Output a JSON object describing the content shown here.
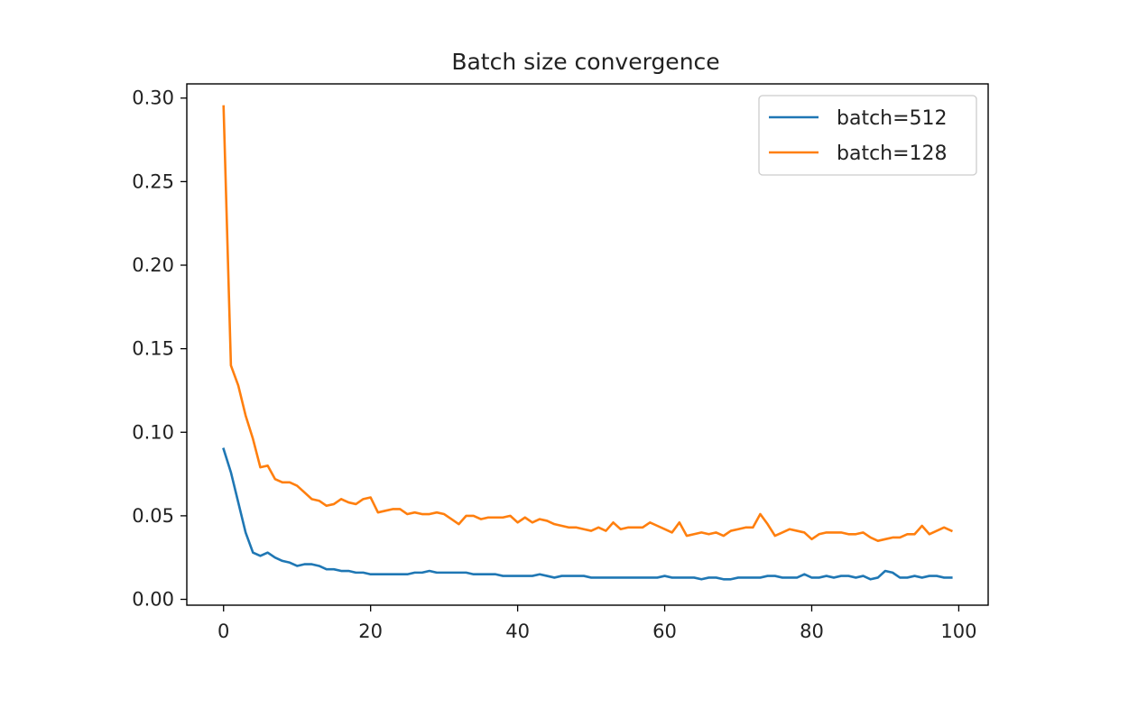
{
  "chart_data": {
    "type": "line",
    "title": "Batch size convergence",
    "xlabel": "",
    "ylabel": "",
    "xlim": [
      -5,
      104
    ],
    "ylim": [
      -0.0035,
      0.3085
    ],
    "xticks": [
      0,
      20,
      40,
      60,
      80,
      100
    ],
    "xtick_labels": [
      "0",
      "20",
      "40",
      "60",
      "80",
      "100"
    ],
    "yticks": [
      0.0,
      0.05,
      0.1,
      0.15,
      0.2,
      0.25,
      0.3
    ],
    "ytick_labels": [
      "0.00",
      "0.05",
      "0.10",
      "0.15",
      "0.20",
      "0.25",
      "0.30"
    ],
    "grid": false,
    "legend_position": "upper right",
    "x": [
      0,
      1,
      2,
      3,
      4,
      5,
      6,
      7,
      8,
      9,
      10,
      11,
      12,
      13,
      14,
      15,
      16,
      17,
      18,
      19,
      20,
      21,
      22,
      23,
      24,
      25,
      26,
      27,
      28,
      29,
      30,
      31,
      32,
      33,
      34,
      35,
      36,
      37,
      38,
      39,
      40,
      41,
      42,
      43,
      44,
      45,
      46,
      47,
      48,
      49,
      50,
      51,
      52,
      53,
      54,
      55,
      56,
      57,
      58,
      59,
      60,
      61,
      62,
      63,
      64,
      65,
      66,
      67,
      68,
      69,
      70,
      71,
      72,
      73,
      74,
      75,
      76,
      77,
      78,
      79,
      80,
      81,
      82,
      83,
      84,
      85,
      86,
      87,
      88,
      89,
      90,
      91,
      92,
      93,
      94,
      95,
      96,
      97,
      98,
      99
    ],
    "series": [
      {
        "name": "batch=512",
        "color": "#1f77b4",
        "values": [
          0.09,
          0.076,
          0.058,
          0.04,
          0.028,
          0.026,
          0.028,
          0.025,
          0.023,
          0.022,
          0.02,
          0.021,
          0.021,
          0.02,
          0.018,
          0.018,
          0.017,
          0.017,
          0.016,
          0.016,
          0.015,
          0.015,
          0.015,
          0.015,
          0.015,
          0.015,
          0.016,
          0.016,
          0.017,
          0.016,
          0.016,
          0.016,
          0.016,
          0.016,
          0.015,
          0.015,
          0.015,
          0.015,
          0.014,
          0.014,
          0.014,
          0.014,
          0.014,
          0.015,
          0.014,
          0.013,
          0.014,
          0.014,
          0.014,
          0.014,
          0.013,
          0.013,
          0.013,
          0.013,
          0.013,
          0.013,
          0.013,
          0.013,
          0.013,
          0.013,
          0.014,
          0.013,
          0.013,
          0.013,
          0.013,
          0.012,
          0.013,
          0.013,
          0.012,
          0.012,
          0.013,
          0.013,
          0.013,
          0.013,
          0.014,
          0.014,
          0.013,
          0.013,
          0.013,
          0.015,
          0.013,
          0.013,
          0.014,
          0.013,
          0.014,
          0.014,
          0.013,
          0.014,
          0.012,
          0.013,
          0.017,
          0.016,
          0.013,
          0.013,
          0.014,
          0.013,
          0.014,
          0.014,
          0.013,
          0.013
        ]
      },
      {
        "name": "batch=128",
        "color": "#ff7f0e",
        "values": [
          0.295,
          0.14,
          0.128,
          0.11,
          0.096,
          0.079,
          0.08,
          0.072,
          0.07,
          0.07,
          0.068,
          0.064,
          0.06,
          0.059,
          0.056,
          0.057,
          0.06,
          0.058,
          0.057,
          0.06,
          0.061,
          0.052,
          0.053,
          0.054,
          0.054,
          0.051,
          0.052,
          0.051,
          0.051,
          0.052,
          0.051,
          0.048,
          0.045,
          0.05,
          0.05,
          0.048,
          0.049,
          0.049,
          0.049,
          0.05,
          0.046,
          0.049,
          0.046,
          0.048,
          0.047,
          0.045,
          0.044,
          0.043,
          0.043,
          0.042,
          0.041,
          0.043,
          0.041,
          0.046,
          0.042,
          0.043,
          0.043,
          0.043,
          0.046,
          0.044,
          0.042,
          0.04,
          0.046,
          0.038,
          0.039,
          0.04,
          0.039,
          0.04,
          0.038,
          0.041,
          0.042,
          0.043,
          0.043,
          0.051,
          0.045,
          0.038,
          0.04,
          0.042,
          0.041,
          0.04,
          0.036,
          0.039,
          0.04,
          0.04,
          0.04,
          0.039,
          0.039,
          0.04,
          0.037,
          0.035,
          0.036,
          0.037,
          0.037,
          0.039,
          0.039,
          0.044,
          0.039,
          0.041,
          0.043,
          0.041
        ]
      }
    ]
  }
}
